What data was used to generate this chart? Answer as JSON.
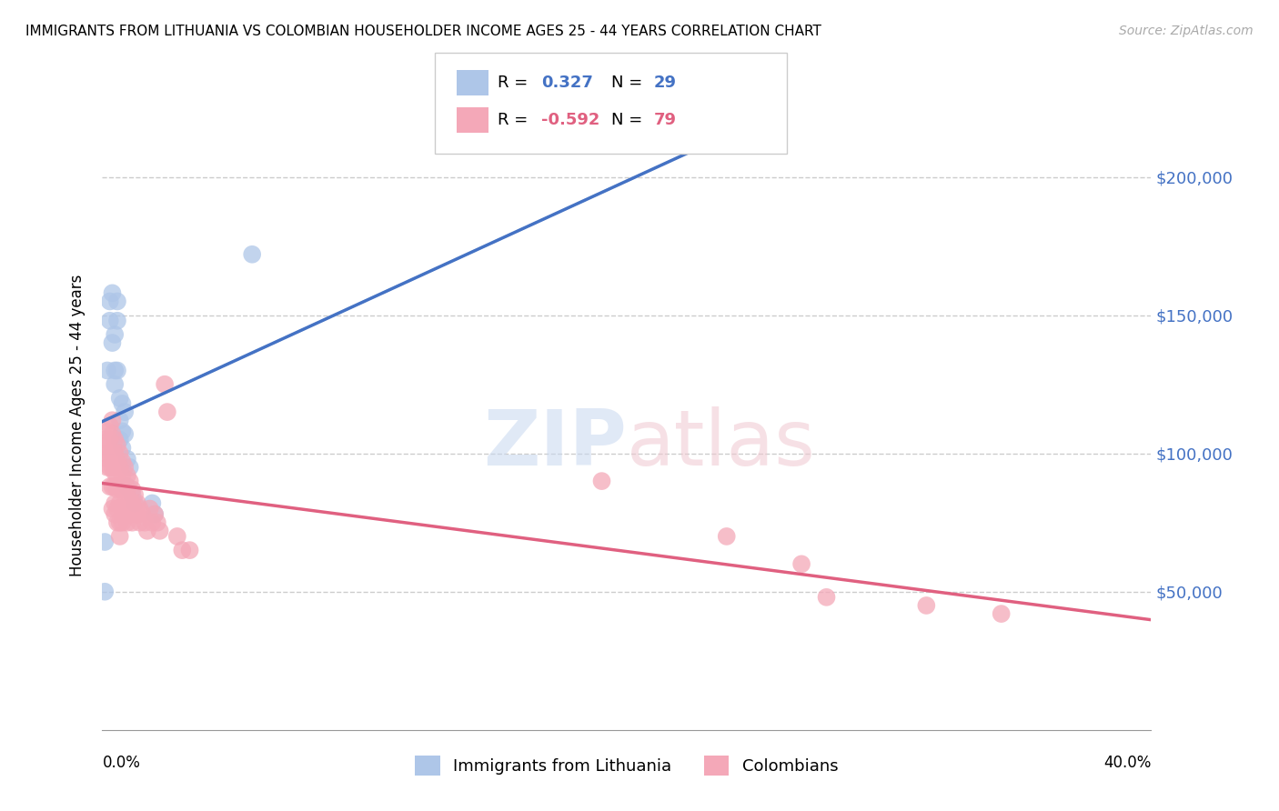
{
  "title": "IMMIGRANTS FROM LITHUANIA VS COLOMBIAN HOUSEHOLDER INCOME AGES 25 - 44 YEARS CORRELATION CHART",
  "source": "Source: ZipAtlas.com",
  "ylabel": "Householder Income Ages 25 - 44 years",
  "yticks": [
    0,
    50000,
    100000,
    150000,
    200000
  ],
  "ytick_labels": [
    "",
    "$50,000",
    "$100,000",
    "$150,000",
    "$200,000"
  ],
  "ylim": [
    0,
    220000
  ],
  "xlim": [
    0.0,
    0.42
  ],
  "r_blue": 0.327,
  "n_blue": 29,
  "r_pink": -0.592,
  "n_pink": 79,
  "blue_color": "#aec6e8",
  "pink_color": "#f4a8b8",
  "trend_blue_solid": "#4472c4",
  "trend_blue_dash": "#aec6e8",
  "trend_pink": "#e06080",
  "legend_blue_label": "Immigrants from Lithuania",
  "legend_pink_label": "Colombians",
  "blue_points": [
    [
      0.001,
      68000
    ],
    [
      0.002,
      130000
    ],
    [
      0.003,
      155000
    ],
    [
      0.003,
      148000
    ],
    [
      0.004,
      140000
    ],
    [
      0.004,
      158000
    ],
    [
      0.005,
      143000
    ],
    [
      0.005,
      130000
    ],
    [
      0.005,
      125000
    ],
    [
      0.006,
      155000
    ],
    [
      0.006,
      148000
    ],
    [
      0.006,
      130000
    ],
    [
      0.007,
      120000
    ],
    [
      0.007,
      112000
    ],
    [
      0.007,
      105000
    ],
    [
      0.008,
      118000
    ],
    [
      0.008,
      108000
    ],
    [
      0.008,
      102000
    ],
    [
      0.009,
      115000
    ],
    [
      0.009,
      107000
    ],
    [
      0.01,
      98000
    ],
    [
      0.01,
      88000
    ],
    [
      0.011,
      95000
    ],
    [
      0.012,
      85000
    ],
    [
      0.013,
      82000
    ],
    [
      0.02,
      82000
    ],
    [
      0.021,
      78000
    ],
    [
      0.06,
      172000
    ],
    [
      0.001,
      50000
    ]
  ],
  "pink_points": [
    [
      0.001,
      105000
    ],
    [
      0.001,
      100000
    ],
    [
      0.002,
      108000
    ],
    [
      0.002,
      103000
    ],
    [
      0.002,
      98000
    ],
    [
      0.002,
      95000
    ],
    [
      0.003,
      110000
    ],
    [
      0.003,
      105000
    ],
    [
      0.003,
      100000
    ],
    [
      0.003,
      95000
    ],
    [
      0.003,
      88000
    ],
    [
      0.004,
      112000
    ],
    [
      0.004,
      107000
    ],
    [
      0.004,
      100000
    ],
    [
      0.004,
      95000
    ],
    [
      0.004,
      88000
    ],
    [
      0.004,
      80000
    ],
    [
      0.005,
      105000
    ],
    [
      0.005,
      100000
    ],
    [
      0.005,
      93000
    ],
    [
      0.005,
      88000
    ],
    [
      0.005,
      82000
    ],
    [
      0.005,
      78000
    ],
    [
      0.006,
      103000
    ],
    [
      0.006,
      97000
    ],
    [
      0.006,
      92000
    ],
    [
      0.006,
      87000
    ],
    [
      0.006,
      80000
    ],
    [
      0.006,
      75000
    ],
    [
      0.007,
      100000
    ],
    [
      0.007,
      95000
    ],
    [
      0.007,
      88000
    ],
    [
      0.007,
      82000
    ],
    [
      0.007,
      75000
    ],
    [
      0.007,
      70000
    ],
    [
      0.008,
      97000
    ],
    [
      0.008,
      92000
    ],
    [
      0.008,
      87000
    ],
    [
      0.008,
      80000
    ],
    [
      0.008,
      75000
    ],
    [
      0.009,
      95000
    ],
    [
      0.009,
      88000
    ],
    [
      0.009,
      82000
    ],
    [
      0.009,
      78000
    ],
    [
      0.01,
      92000
    ],
    [
      0.01,
      87000
    ],
    [
      0.01,
      80000
    ],
    [
      0.01,
      75000
    ],
    [
      0.011,
      90000
    ],
    [
      0.011,
      83000
    ],
    [
      0.011,
      78000
    ],
    [
      0.012,
      87000
    ],
    [
      0.012,
      82000
    ],
    [
      0.012,
      75000
    ],
    [
      0.013,
      85000
    ],
    [
      0.013,
      80000
    ],
    [
      0.014,
      82000
    ],
    [
      0.014,
      78000
    ],
    [
      0.015,
      80000
    ],
    [
      0.015,
      75000
    ],
    [
      0.016,
      78000
    ],
    [
      0.017,
      75000
    ],
    [
      0.018,
      72000
    ],
    [
      0.019,
      80000
    ],
    [
      0.02,
      75000
    ],
    [
      0.021,
      78000
    ],
    [
      0.022,
      75000
    ],
    [
      0.023,
      72000
    ],
    [
      0.025,
      125000
    ],
    [
      0.026,
      115000
    ],
    [
      0.03,
      70000
    ],
    [
      0.032,
      65000
    ],
    [
      0.035,
      65000
    ],
    [
      0.2,
      90000
    ],
    [
      0.25,
      70000
    ],
    [
      0.28,
      60000
    ],
    [
      0.29,
      48000
    ],
    [
      0.33,
      45000
    ],
    [
      0.36,
      42000
    ]
  ]
}
